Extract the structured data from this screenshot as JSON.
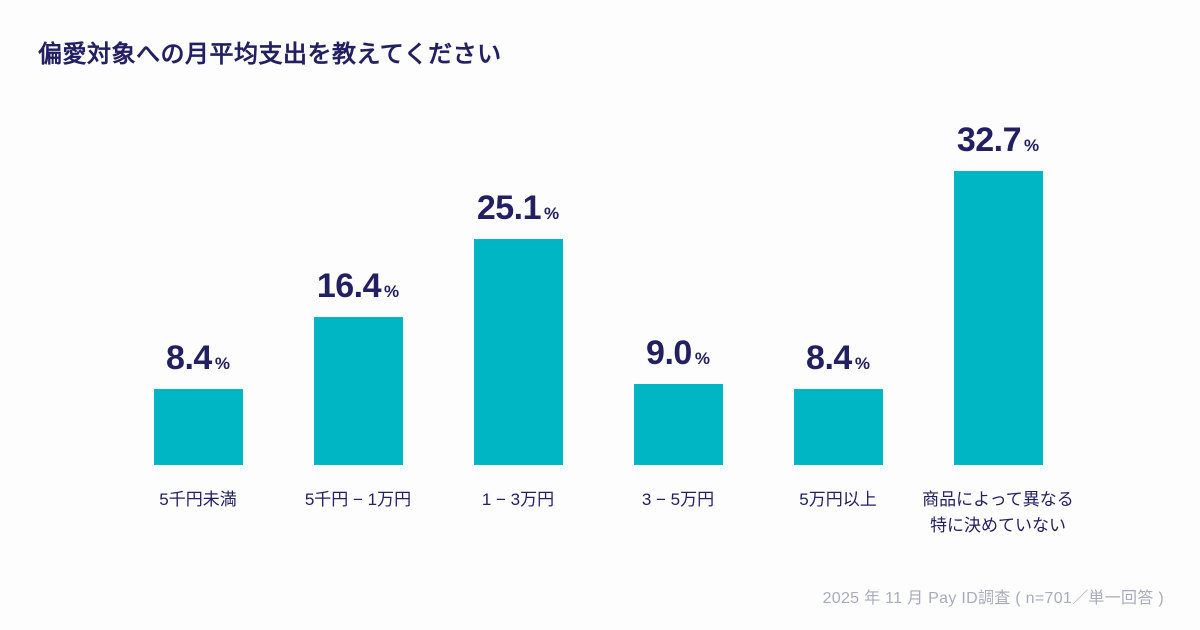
{
  "page": {
    "title": "偏愛対象への月平均支出を教えてください",
    "source_note": "2025 年 11 月 Pay ID調査 ( n=701／単一回答 )"
  },
  "chart_data": {
    "type": "bar",
    "title": "偏愛対象への月平均支出を教えてください",
    "categories": [
      "5千円未満",
      "5千円 − 1万円",
      "1 − 3万円",
      "3 − 5万円",
      "5万円以上",
      "商品によって異なる\n特に決めていない"
    ],
    "values": [
      8.4,
      16.4,
      25.1,
      9.0,
      8.4,
      32.7
    ],
    "value_labels": [
      "8.4",
      "16.4",
      "25.1",
      "9.0",
      "8.4",
      "32.7"
    ],
    "unit": "%",
    "xlabel": "",
    "ylabel": "",
    "ylim": [
      0,
      36
    ],
    "grid": false,
    "legend": false,
    "bar_color": "#00b6c4",
    "label_color": "#232061",
    "source_note_color": "#a9abbc",
    "annotation": "2025 年 11 月 Pay ID調査 ( n=701／単一回答 )"
  }
}
